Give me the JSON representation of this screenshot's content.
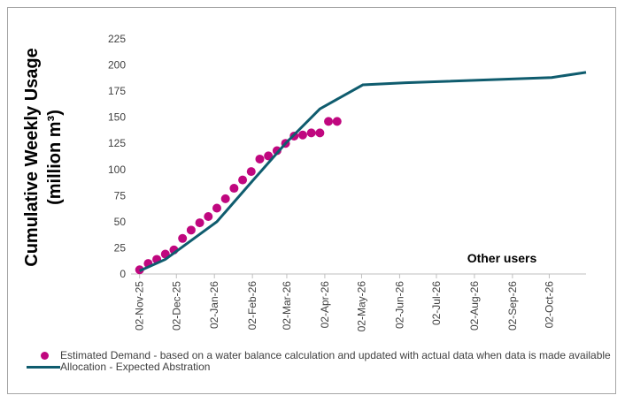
{
  "chart_data": {
    "type": "line",
    "y_label": [
      "Cumulative Weekly Usage",
      "(million m³)"
    ],
    "annotation": "Other users",
    "xlim": [
      "2025-10-26",
      "2026-11-01"
    ],
    "xticks": [
      {
        "value": "2025-11-02",
        "label": "02-Nov-25"
      },
      {
        "value": "2025-12-02",
        "label": "02-Dec-25"
      },
      {
        "value": "2026-01-02",
        "label": "02-Jan-26"
      },
      {
        "value": "2026-02-02",
        "label": "02-Feb-26"
      },
      {
        "value": "2026-03-02",
        "label": "02-Mar-26"
      },
      {
        "value": "2026-04-02",
        "label": "02-Apr-26"
      },
      {
        "value": "2026-05-02",
        "label": "02-May-26"
      },
      {
        "value": "2026-06-02",
        "label": "02-Jun-26"
      },
      {
        "value": "2026-07-02",
        "label": "02-Jul-26"
      },
      {
        "value": "2026-08-02",
        "label": "02-Aug-26"
      },
      {
        "value": "2026-09-02",
        "label": "02-Sep-26"
      },
      {
        "value": "2026-10-02",
        "label": "02-Oct-26"
      }
    ],
    "ylim": [
      0,
      225
    ],
    "yticks": [
      0,
      25,
      50,
      75,
      100,
      125,
      150,
      175,
      200,
      225
    ],
    "grid": false,
    "series": [
      {
        "name": "Estimated Demand - based on a water balance calculation and updated with actual data when data is made available",
        "kind": "scatter",
        "color": "#c0077f",
        "x": [
          "2025-11-02",
          "2025-11-09",
          "2025-11-16",
          "2025-11-23",
          "2025-11-30",
          "2025-12-07",
          "2025-12-14",
          "2025-12-21",
          "2025-12-28",
          "2026-01-04",
          "2026-01-11",
          "2026-01-18",
          "2026-01-25",
          "2026-02-01",
          "2026-02-08",
          "2026-02-15",
          "2026-02-22",
          "2026-03-01",
          "2026-03-08",
          "2026-03-15",
          "2026-03-22",
          "2026-03-29",
          "2026-04-05",
          "2026-04-12"
        ],
        "values": [
          4,
          10,
          14,
          19,
          23,
          34,
          42,
          49,
          55,
          63,
          72,
          82,
          90,
          98,
          110,
          113,
          118,
          125,
          132,
          133,
          135,
          135,
          146,
          146
        ]
      },
      {
        "name": "Allocation - Expected Abstration",
        "kind": "line",
        "color": "#0f5c6e",
        "x": [
          "2025-11-02",
          "2025-11-23",
          "2026-01-04",
          "2026-02-02",
          "2026-03-01",
          "2026-03-29",
          "2026-05-03",
          "2026-06-07",
          "2026-10-04",
          "2026-11-01"
        ],
        "values": [
          3,
          14,
          50,
          89,
          125,
          158,
          181,
          183,
          188,
          193
        ]
      }
    ]
  }
}
